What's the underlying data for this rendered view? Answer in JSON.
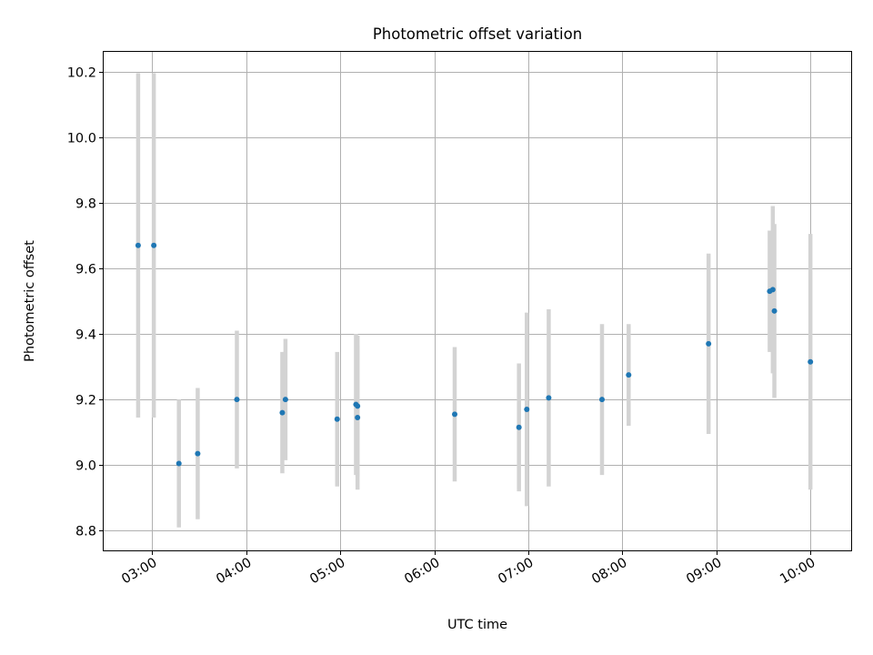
{
  "chart_data": {
    "type": "scatter",
    "title": "Photometric offset variation",
    "xlabel": "UTC time",
    "ylabel": "Photometric offset",
    "x_is_time": true,
    "xlim": [
      "02:29",
      "10:26"
    ],
    "ylim": [
      8.74,
      10.26
    ],
    "xticks": [
      "03:00",
      "04:00",
      "05:00",
      "06:00",
      "07:00",
      "08:00",
      "09:00",
      "10:00"
    ],
    "yticks": [
      8.8,
      9.0,
      9.2,
      9.4,
      9.6,
      9.8,
      10.0,
      10.2
    ],
    "ytick_labels": [
      "8.8",
      "9.0",
      "9.2",
      "9.4",
      "9.6",
      "9.8",
      "10.0",
      "10.2"
    ],
    "grid": true,
    "colors": {
      "point": "#1f77b4",
      "errorbar": "#d3d3d3",
      "grid": "#b0b0b0"
    },
    "points": [
      {
        "time": "02:51",
        "y": 9.67,
        "err": 0.525
      },
      {
        "time": "03:01",
        "y": 9.67,
        "err": 0.525
      },
      {
        "time": "03:17",
        "y": 9.005,
        "err": 0.195
      },
      {
        "time": "03:29",
        "y": 9.035,
        "err": 0.2
      },
      {
        "time": "03:54",
        "y": 9.2,
        "err": 0.21
      },
      {
        "time": "04:23",
        "y": 9.16,
        "err": 0.185
      },
      {
        "time": "04:25",
        "y": 9.2,
        "err": 0.185
      },
      {
        "time": "04:58",
        "y": 9.14,
        "err": 0.205
      },
      {
        "time": "05:10",
        "y": 9.185,
        "err": 0.215
      },
      {
        "time": "05:11",
        "y": 9.18,
        "err": 0.215
      },
      {
        "time": "05:11",
        "y": 9.145,
        "err": 0.22
      },
      {
        "time": "06:13",
        "y": 9.155,
        "err": 0.205
      },
      {
        "time": "06:54",
        "y": 9.115,
        "err": 0.195
      },
      {
        "time": "06:59",
        "y": 9.17,
        "err": 0.295
      },
      {
        "time": "07:13",
        "y": 9.205,
        "err": 0.27
      },
      {
        "time": "07:47",
        "y": 9.2,
        "err": 0.23
      },
      {
        "time": "08:04",
        "y": 9.275,
        "err": 0.155
      },
      {
        "time": "08:55",
        "y": 9.37,
        "err": 0.275
      },
      {
        "time": "09:34",
        "y": 9.53,
        "err": 0.185
      },
      {
        "time": "09:36",
        "y": 9.535,
        "err": 0.255
      },
      {
        "time": "09:37",
        "y": 9.47,
        "err": 0.265
      },
      {
        "time": "10:00",
        "y": 9.315,
        "err": 0.39
      }
    ]
  }
}
